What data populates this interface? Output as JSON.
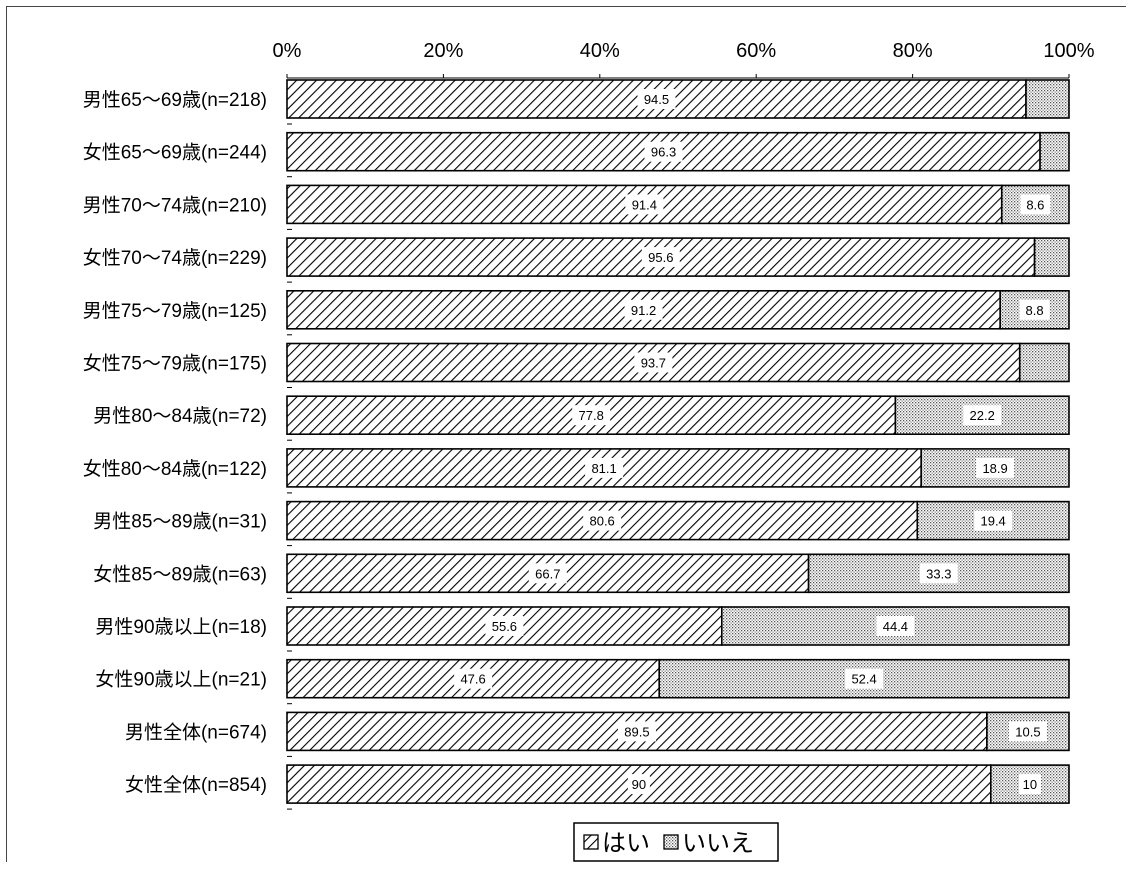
{
  "chart_data": {
    "type": "bar",
    "stacked": true,
    "orientation": "horizontal",
    "percent_axis": true,
    "xlim": [
      0,
      100
    ],
    "xticks": [
      "0%",
      "20%",
      "40%",
      "60%",
      "80%",
      "100%"
    ],
    "xtick_values": [
      0,
      20,
      40,
      60,
      80,
      100
    ],
    "categories": [
      "男性65～69歳(n=218)",
      "女性65～69歳(n=244)",
      "男性70～74歳(n=210)",
      "女性70～74歳(n=229)",
      "男性75～79歳(n=125)",
      "女性75～79歳(n=175)",
      "男性80～84歳(n=72)",
      "女性80～84歳(n=122)",
      "男性85～89歳(n=31)",
      "女性85～89歳(n=63)",
      "男性90歳以上(n=18)",
      "女性90歳以上(n=21)",
      "男性全体(n=674)",
      "女性全体(n=854)"
    ],
    "series": [
      {
        "name": "はい",
        "pattern": "diagonal-hatch",
        "values": [
          94.5,
          96.3,
          91.4,
          95.6,
          91.2,
          93.7,
          77.8,
          81.1,
          80.6,
          66.7,
          55.6,
          47.6,
          89.5,
          90
        ],
        "labels": [
          "94.5",
          "96.3",
          "91.4",
          "95.6",
          "91.2",
          "93.7",
          "77.8",
          "81.1",
          "80.6",
          "66.7",
          "55.6",
          "47.6",
          "89.5",
          "90"
        ]
      },
      {
        "name": "いいえ",
        "pattern": "dots",
        "values": [
          5.5,
          3.7,
          8.6,
          4.4,
          8.8,
          6.3,
          22.2,
          18.9,
          19.4,
          33.3,
          44.4,
          52.4,
          10.5,
          10
        ],
        "labels": [
          "",
          "",
          "8.6",
          "",
          "8.8",
          "",
          "22.2",
          "18.9",
          "19.4",
          "33.3",
          "44.4",
          "52.4",
          "10.5",
          "10"
        ]
      }
    ],
    "legend": {
      "position": "bottom-center"
    },
    "grid": false,
    "colors": {
      "border": "#000000",
      "hatch": "#000000",
      "dots": "#555555",
      "background": "#ffffff"
    }
  }
}
